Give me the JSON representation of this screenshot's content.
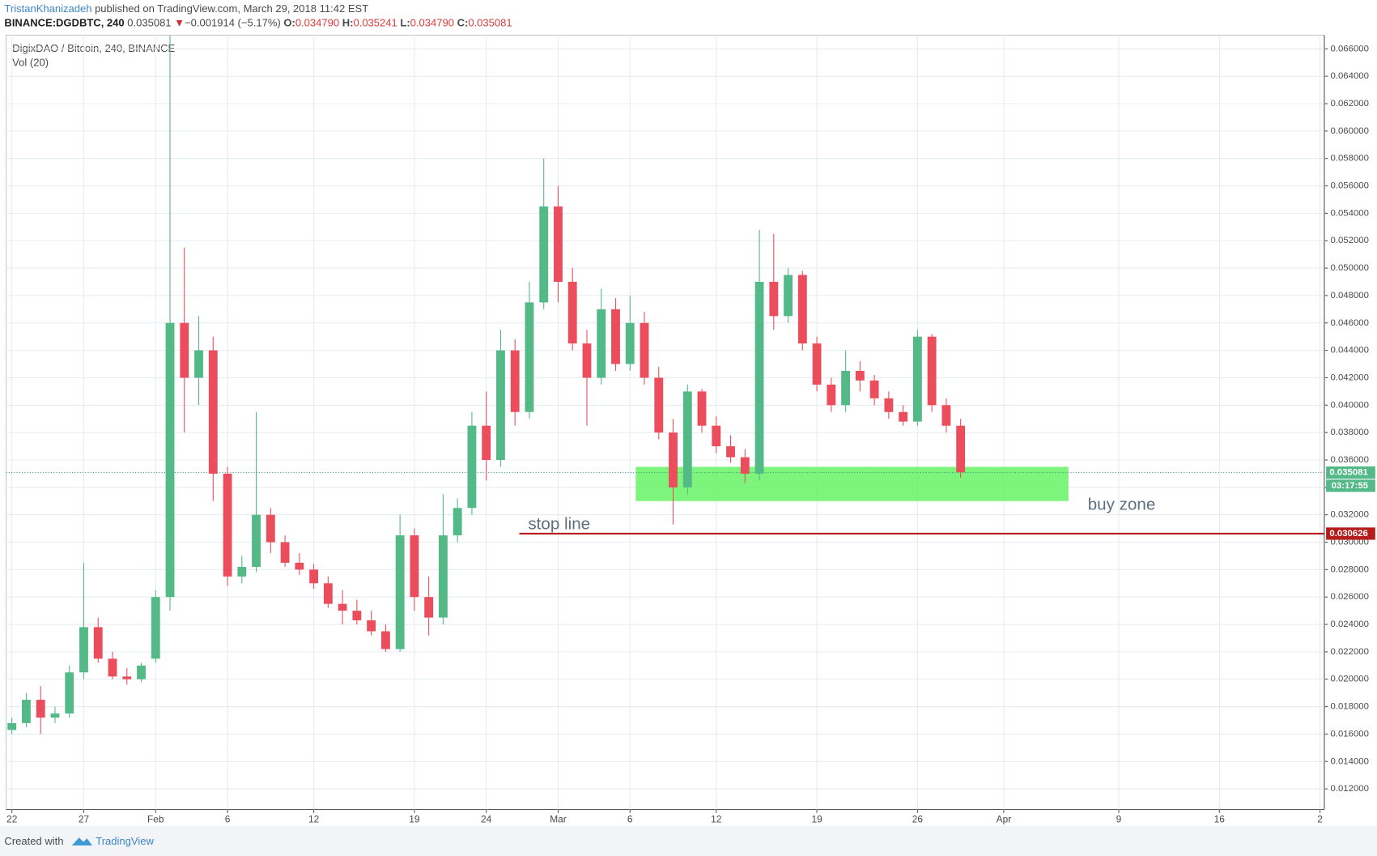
{
  "header": {
    "author": "TristanKhanizadeh",
    "published": "published on TradingView.com, March 29, 2018 11:42 EST",
    "symbol": "BINANCE:DGDBTC, 240",
    "last": "0.035081",
    "change": "−0.001914 (−5.17%)",
    "o_label": "O:",
    "open": "0.034790",
    "h_label": "H:",
    "high": "0.035241",
    "l_label": "L:",
    "low": "0.034790",
    "c_label": "C:",
    "close": "0.035081"
  },
  "chart_data": {
    "type": "candlestick",
    "title": "DigixDAO / Bitcoin, 240, BINANCE",
    "subtitle": "Vol (20)",
    "up_color": "#53b987",
    "down_color": "#eb4d5c",
    "grid": true,
    "x": [
      22,
      23,
      24,
      25,
      26,
      27,
      28,
      29,
      30,
      31,
      32,
      33,
      34,
      35,
      36,
      37,
      38,
      39,
      40,
      41,
      42,
      43,
      44,
      45,
      46,
      47,
      48,
      49,
      50,
      51,
      52,
      53,
      54,
      55,
      56,
      57,
      58,
      59,
      60,
      61,
      62,
      63,
      64,
      65,
      66,
      67,
      68,
      69,
      70,
      71,
      72,
      73,
      74,
      75,
      76,
      77,
      78,
      79,
      80,
      81,
      82,
      83,
      84,
      85,
      86,
      87,
      88
    ],
    "open": [
      0.0163,
      0.0168,
      0.0185,
      0.0172,
      0.0175,
      0.0205,
      0.0238,
      0.0215,
      0.0202,
      0.02,
      0.0215,
      0.026,
      0.046,
      0.042,
      0.044,
      0.035,
      0.0275,
      0.0282,
      0.032,
      0.03,
      0.0285,
      0.028,
      0.027,
      0.0255,
      0.025,
      0.0243,
      0.0235,
      0.0222,
      0.0305,
      0.026,
      0.0245,
      0.0305,
      0.0325,
      0.0385,
      0.036,
      0.044,
      0.0395,
      0.0475,
      0.0545,
      0.049,
      0.0445,
      0.042,
      0.047,
      0.043,
      0.046,
      0.042,
      0.038,
      0.034,
      0.041,
      0.0385,
      0.037,
      0.0362,
      0.035,
      0.049,
      0.0465,
      0.0495,
      0.0445,
      0.0415,
      0.04,
      0.0425,
      0.0418,
      0.0405,
      0.0395,
      0.0388,
      0.045,
      0.04,
      0.0385
    ],
    "high": [
      0.0172,
      0.019,
      0.0195,
      0.018,
      0.021,
      0.0285,
      0.0245,
      0.022,
      0.0208,
      0.0212,
      0.0265,
      0.067,
      0.0515,
      0.0465,
      0.045,
      0.0355,
      0.029,
      0.0395,
      0.0325,
      0.0305,
      0.0292,
      0.0284,
      0.0275,
      0.0265,
      0.0258,
      0.025,
      0.024,
      0.032,
      0.031,
      0.0275,
      0.0335,
      0.0332,
      0.0395,
      0.041,
      0.0455,
      0.0448,
      0.049,
      0.058,
      0.056,
      0.05,
      0.0455,
      0.0485,
      0.0478,
      0.048,
      0.0468,
      0.0428,
      0.039,
      0.0415,
      0.0412,
      0.0392,
      0.0378,
      0.0368,
      0.0528,
      0.0525,
      0.05,
      0.0498,
      0.045,
      0.042,
      0.044,
      0.0432,
      0.0422,
      0.041,
      0.04,
      0.0455,
      0.0452,
      0.0405,
      0.039
    ],
    "low": [
      0.016,
      0.0165,
      0.016,
      0.0168,
      0.0172,
      0.02,
      0.0212,
      0.02,
      0.0196,
      0.0198,
      0.0212,
      0.025,
      0.038,
      0.04,
      0.033,
      0.0268,
      0.027,
      0.0278,
      0.0292,
      0.0282,
      0.0276,
      0.0266,
      0.0252,
      0.024,
      0.024,
      0.0232,
      0.022,
      0.022,
      0.025,
      0.0232,
      0.024,
      0.03,
      0.032,
      0.0345,
      0.0355,
      0.0385,
      0.039,
      0.047,
      0.0475,
      0.044,
      0.0385,
      0.0415,
      0.0425,
      0.0425,
      0.0415,
      0.0375,
      0.0313,
      0.0335,
      0.038,
      0.0365,
      0.0358,
      0.0343,
      0.0345,
      0.0455,
      0.046,
      0.044,
      0.041,
      0.0395,
      0.0395,
      0.041,
      0.04,
      0.039,
      0.0385,
      0.0385,
      0.0395,
      0.038,
      0.0347
    ],
    "close": [
      0.0168,
      0.0185,
      0.0172,
      0.0175,
      0.0205,
      0.0238,
      0.0215,
      0.0202,
      0.02,
      0.021,
      0.026,
      0.046,
      0.042,
      0.044,
      0.035,
      0.0275,
      0.0282,
      0.032,
      0.03,
      0.0285,
      0.028,
      0.027,
      0.0255,
      0.025,
      0.0243,
      0.0235,
      0.0222,
      0.0305,
      0.026,
      0.0245,
      0.0305,
      0.0325,
      0.0385,
      0.036,
      0.044,
      0.0395,
      0.0475,
      0.0545,
      0.049,
      0.0445,
      0.042,
      0.047,
      0.043,
      0.046,
      0.042,
      0.038,
      0.034,
      0.041,
      0.0385,
      0.037,
      0.0362,
      0.035,
      0.049,
      0.0465,
      0.0495,
      0.0445,
      0.0415,
      0.04,
      0.0425,
      0.0418,
      0.0405,
      0.0395,
      0.0388,
      0.045,
      0.04,
      0.0385,
      0.0351
    ],
    "xlim": [
      21.6,
      113.3
    ],
    "xticks": [
      22,
      27,
      {
        "value": 32,
        "label": "Feb"
      },
      {
        "value": 37,
        "label": "6"
      },
      {
        "value": 43,
        "label": "12"
      },
      {
        "value": 50,
        "label": "19"
      },
      {
        "value": 55,
        "label": "24"
      },
      {
        "value": 60,
        "label": "Mar"
      },
      {
        "value": 65,
        "label": "6"
      },
      {
        "value": 71,
        "label": "12"
      },
      {
        "value": 78,
        "label": "19"
      },
      {
        "value": 85,
        "label": "26"
      },
      {
        "value": 91,
        "label": "Apr"
      },
      {
        "value": 99,
        "label": "9"
      },
      {
        "value": 106,
        "label": "16"
      },
      {
        "value": 113,
        "label": "2"
      }
    ],
    "ylim": [
      0.0105,
      0.067
    ],
    "yticks": [
      {
        "value": 0.012,
        "label": "0.012000"
      },
      {
        "value": 0.014,
        "label": "0.014000"
      },
      {
        "value": 0.016,
        "label": "0.016000"
      },
      {
        "value": 0.018,
        "label": "0.018000"
      },
      {
        "value": 0.02,
        "label": "0.020000"
      },
      {
        "value": 0.022,
        "label": "0.022000"
      },
      {
        "value": 0.024,
        "label": "0.024000"
      },
      {
        "value": 0.026,
        "label": "0.026000"
      },
      {
        "value": 0.028,
        "label": "0.028000"
      },
      {
        "value": 0.03,
        "label": "0.030000"
      },
      {
        "value": 0.032,
        "label": "0.032000"
      },
      {
        "value": 0.034,
        "label": "0.034000"
      },
      {
        "value": 0.036,
        "label": "0.036000"
      },
      {
        "value": 0.038,
        "label": "0.038000"
      },
      {
        "value": 0.04,
        "label": "0.040000"
      },
      {
        "value": 0.042,
        "label": "0.042000"
      },
      {
        "value": 0.044,
        "label": "0.044000"
      },
      {
        "value": 0.046,
        "label": "0.046000"
      },
      {
        "value": 0.048,
        "label": "0.048000"
      },
      {
        "value": 0.05,
        "label": "0.050000"
      },
      {
        "value": 0.052,
        "label": "0.052000"
      },
      {
        "value": 0.054,
        "label": "0.054000"
      },
      {
        "value": 0.056,
        "label": "0.056000"
      },
      {
        "value": 0.058,
        "label": "0.058000"
      },
      {
        "value": 0.06,
        "label": "0.060000"
      },
      {
        "value": 0.062,
        "label": "0.062000"
      },
      {
        "value": 0.064,
        "label": "0.064000"
      },
      {
        "value": 0.066,
        "label": "0.066000"
      }
    ],
    "last_price": 0.035081,
    "countdown": "03:17:55",
    "stop_line": {
      "label": "stop line",
      "value": 0.030626,
      "color": "#b71c1c",
      "x_start": 57.3
    },
    "buy_zone": {
      "label": "buy zone",
      "ylim": [
        0.033,
        0.0355
      ],
      "xlim": [
        65.4,
        95.5
      ],
      "color": "#5cf35c"
    }
  },
  "footer": {
    "created": "Created with",
    "brand": "TradingView"
  }
}
